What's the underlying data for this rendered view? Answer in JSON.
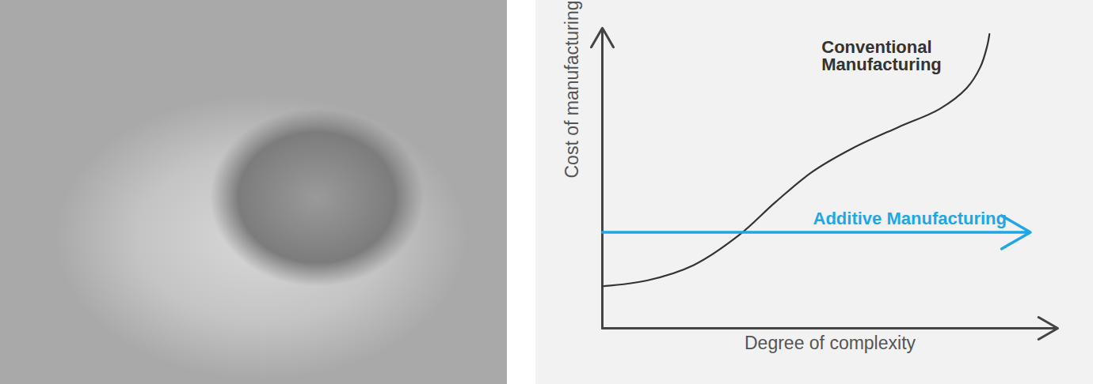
{
  "chart_data": {
    "type": "line",
    "xlabel": "Degree of complexity",
    "ylabel": "Cost of manufacturing",
    "xlim": [
      0,
      100
    ],
    "ylim": [
      0,
      100
    ],
    "tick_labels": false,
    "series": [
      {
        "name": "Conventional Manufacturing",
        "color": "#333333",
        "x": [
          0,
          10,
          20,
          30,
          38,
          46,
          55,
          65,
          74,
          80,
          83,
          84.5,
          85
        ],
        "values": [
          14,
          16,
          21,
          31,
          42,
          52,
          60,
          67,
          73,
          80,
          87,
          94,
          98
        ]
      },
      {
        "name": "Additive Manufacturing",
        "color": "#1ea7e4",
        "line_style": "arrow",
        "x": [
          0,
          94
        ],
        "values": [
          32,
          32
        ]
      }
    ]
  }
}
